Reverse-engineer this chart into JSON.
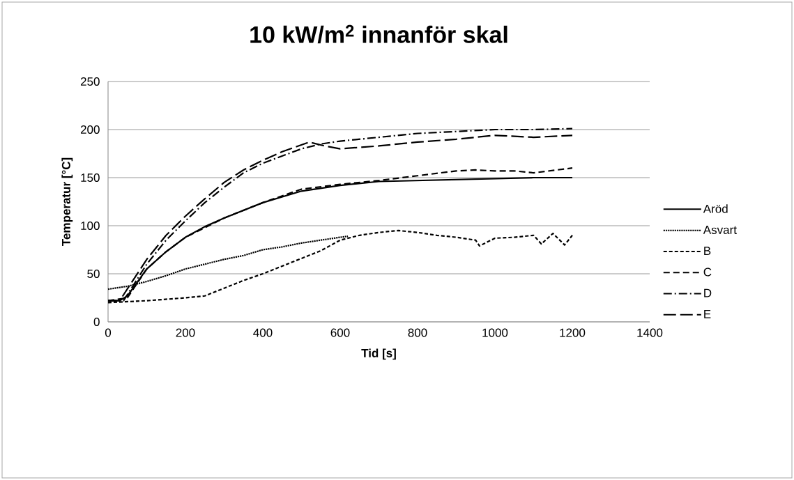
{
  "chart_data": {
    "type": "line",
    "title": "10 kW/m$^{2}$ innanför skal",
    "xlabel": "Tid [s]",
    "ylabel": "Temperatur [°C]",
    "xlim": [
      0,
      1400
    ],
    "ylim": [
      0,
      250
    ],
    "xticks": [
      0,
      200,
      400,
      600,
      800,
      1000,
      1200,
      1400
    ],
    "yticks": [
      0,
      50,
      100,
      150,
      200,
      250
    ],
    "grid": "y",
    "legend": "right",
    "series": [
      {
        "name": "Aröd",
        "color": "#000000",
        "line_style": "solid",
        "x": [
          0,
          30,
          50,
          100,
          150,
          200,
          250,
          300,
          400,
          500,
          600,
          700,
          800,
          900,
          1000,
          1100,
          1200
        ],
        "values": [
          22,
          22,
          27,
          55,
          73,
          88,
          99,
          108,
          124,
          136,
          142,
          146,
          147,
          148,
          149,
          150,
          150
        ]
      },
      {
        "name": "Asvart",
        "color": "#000000",
        "line_style": "dotted",
        "x": [
          0,
          50,
          100,
          150,
          200,
          250,
          300,
          350,
          400,
          450,
          500,
          550,
          600,
          620
        ],
        "values": [
          34,
          37,
          42,
          48,
          55,
          60,
          65,
          69,
          75,
          78,
          82,
          85,
          88,
          89
        ]
      },
      {
        "name": "B",
        "color": "#000000",
        "line_style": "dashed",
        "x": [
          0,
          100,
          200,
          250,
          300,
          350,
          400,
          450,
          500,
          550,
          600,
          650,
          700,
          750,
          800,
          850,
          900,
          950,
          960,
          1000,
          1050,
          1100,
          1120,
          1150,
          1180,
          1200
        ],
        "values": [
          20,
          22,
          25,
          27,
          35,
          43,
          50,
          58,
          66,
          74,
          85,
          90,
          93,
          95,
          93,
          90,
          88,
          85,
          79,
          87,
          88,
          90,
          81,
          92,
          80,
          90
        ]
      },
      {
        "name": "C",
        "color": "#000000",
        "line_style": "medium-dashed",
        "x": [
          0,
          50,
          100,
          150,
          200,
          300,
          400,
          500,
          600,
          700,
          800,
          900,
          950,
          1000,
          1050,
          1100,
          1200
        ],
        "values": [
          22,
          25,
          55,
          73,
          88,
          108,
          124,
          138,
          143,
          147,
          152,
          157,
          158,
          157,
          157,
          155,
          160
        ]
      },
      {
        "name": "D",
        "color": "#000000",
        "line_style": "dash-dot",
        "x": [
          0,
          40,
          100,
          150,
          200,
          250,
          300,
          350,
          400,
          500,
          550,
          600,
          700,
          800,
          900,
          1000,
          1100,
          1200
        ],
        "values": [
          22,
          22,
          60,
          85,
          105,
          124,
          140,
          155,
          165,
          180,
          185,
          188,
          192,
          196,
          198,
          200,
          200,
          201
        ]
      },
      {
        "name": "E",
        "color": "#000000",
        "line_style": "long-dashed",
        "x": [
          0,
          30,
          100,
          150,
          200,
          250,
          300,
          350,
          400,
          450,
          520,
          560,
          600,
          700,
          800,
          900,
          1000,
          1050,
          1100,
          1200
        ],
        "values": [
          22,
          22,
          65,
          90,
          110,
          128,
          145,
          158,
          168,
          177,
          187,
          183,
          180,
          183,
          187,
          190,
          194,
          193,
          192,
          194
        ]
      }
    ]
  }
}
